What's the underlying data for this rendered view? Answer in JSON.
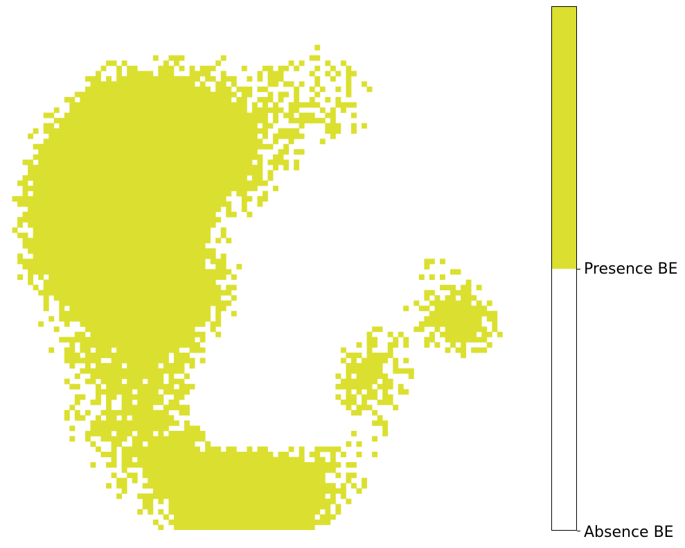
{
  "chart_data": {
    "type": "heatmap",
    "title": "",
    "xlabel": "",
    "ylabel": "",
    "grid": false,
    "axes_visible": false,
    "grid_resolution": [
      100,
      100
    ],
    "categories": [
      "Absence BE",
      "Presence BE"
    ],
    "values": [
      0,
      1
    ],
    "colors": {
      "Absence BE": "#ffffff",
      "Presence BE": "#dbe030"
    },
    "presence_fraction": 0.33,
    "colorbar": {
      "position": "right",
      "ticks": [
        {
          "value": 0,
          "label": "Absence BE"
        },
        {
          "value": 1,
          "label": "Presence BE"
        }
      ]
    }
  }
}
